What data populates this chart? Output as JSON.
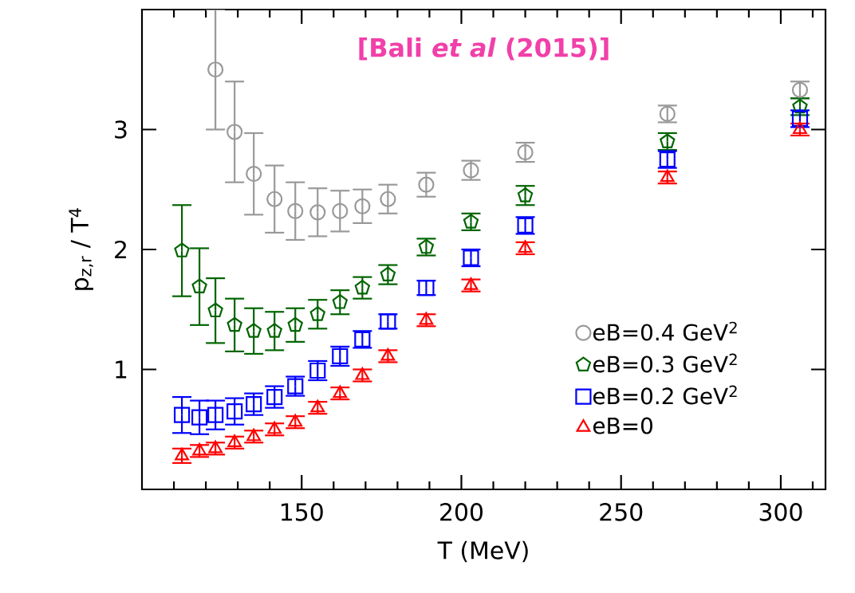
{
  "chart_data": {
    "type": "scatter",
    "xlabel": "T (MeV)",
    "ylabel": "p$_{z,r}$ / T$^{4}$",
    "annotations": [
      "[Bali *et al* (2015)]"
    ],
    "x": [
      112.5,
      118,
      123,
      129,
      135,
      141.5,
      148,
      155,
      162,
      169,
      177,
      189,
      203,
      220,
      264.5,
      306
    ],
    "series": [
      {
        "name": "eB=0.4 GeV$^{2}$",
        "color": "#999999",
        "marker": "circle",
        "values": [
          null,
          null,
          3.5,
          2.98,
          2.63,
          2.42,
          2.32,
          2.31,
          2.32,
          2.36,
          2.42,
          2.54,
          2.66,
          2.81,
          3.13,
          3.33
        ],
        "errors": [
          null,
          null,
          0.5,
          0.42,
          0.34,
          0.28,
          0.24,
          0.2,
          0.17,
          0.14,
          0.12,
          0.1,
          0.08,
          0.08,
          0.07,
          0.07
        ]
      },
      {
        "name": "eB=0.3 GeV$^{2}$",
        "color": "#006400",
        "values": [
          1.99,
          1.69,
          1.49,
          1.37,
          1.32,
          1.32,
          1.37,
          1.46,
          1.56,
          1.68,
          1.79,
          2.02,
          2.23,
          2.45,
          2.9,
          3.19
        ],
        "errors": [
          0.38,
          0.32,
          0.27,
          0.22,
          0.19,
          0.16,
          0.14,
          0.12,
          0.1,
          0.09,
          0.08,
          0.07,
          0.07,
          0.08,
          0.07,
          0.07
        ]
      },
      {
        "name": "eB=0.2 GeV$^{2}$",
        "color": "#0000ff",
        "marker": "square",
        "values": [
          0.62,
          0.6,
          0.62,
          0.65,
          0.71,
          0.77,
          0.86,
          0.99,
          1.11,
          1.25,
          1.4,
          1.68,
          1.93,
          2.2,
          2.75,
          3.09
        ],
        "errors": [
          0.15,
          0.14,
          0.12,
          0.11,
          0.09,
          0.09,
          0.08,
          0.08,
          0.08,
          0.07,
          0.06,
          0.06,
          0.07,
          0.07,
          0.07,
          0.07
        ]
      },
      {
        "name": "eB=0",
        "color": "#ff0000",
        "marker": "triangle",
        "values": [
          0.28,
          0.32,
          0.34,
          0.39,
          0.44,
          0.5,
          0.56,
          0.68,
          0.8,
          0.95,
          1.11,
          1.41,
          1.7,
          2.01,
          2.6,
          3.0
        ],
        "errors": [
          0.06,
          0.05,
          0.05,
          0.05,
          0.05,
          0.05,
          0.05,
          0.05,
          0.05,
          0.05,
          0.05,
          0.05,
          0.05,
          0.05,
          0.05,
          0.05
        ]
      }
    ],
    "xlim": [
      100,
      314
    ],
    "ylim": [
      0,
      4
    ],
    "xticks": [
      {
        "value": 110,
        "label": null
      },
      {
        "value": 120,
        "label": null
      },
      {
        "value": 130,
        "label": null
      },
      {
        "value": 140,
        "label": null
      },
      150,
      {
        "value": 160,
        "label": null
      },
      {
        "value": 170,
        "label": null
      },
      {
        "value": 180,
        "label": null
      },
      {
        "value": 190,
        "label": null
      },
      200,
      {
        "value": 210,
        "label": null
      },
      {
        "value": 220,
        "label": null
      },
      {
        "value": 230,
        "label": null
      },
      {
        "value": 240,
        "label": null
      },
      250,
      {
        "value": 260,
        "label": null
      },
      {
        "value": 270,
        "label": null
      },
      {
        "value": 280,
        "label": null
      },
      {
        "value": 290,
        "label": null
      },
      300,
      {
        "value": 310,
        "label": null
      }
    ],
    "yticks": [
      1,
      2,
      3
    ],
    "legend": "bottom right",
    "grid": false
  }
}
